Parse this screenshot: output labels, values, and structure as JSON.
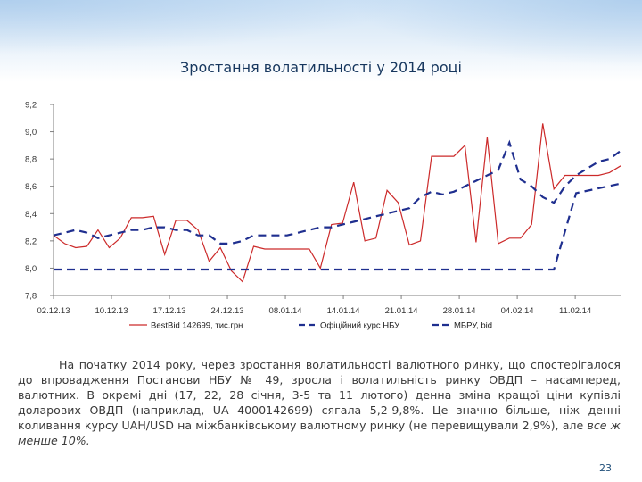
{
  "title": "Зростання волатильності у 2014 році",
  "caption": {
    "text": "На початку 2014 року, через зростання волатильності валютного ринку, що спостерігалося до впровадження Постанови НБУ № 49, зросла і волатильність ринку ОВДП – насамперед, валютних. В окремі дні (17, 22, 28 січня, 3-5 та 11 лютого) денна зміна кращої ціни купівлі доларових ОВДП (наприклад, UA 4000142699) сягала 5,2-9,8%. Це значно більше, ніж денні коливання курсу UAH/USD на міжбанківському валютному ринку (не перевищували 2,9%), але ",
    "emphasis": "все ж менше 10%."
  },
  "page_number": "23",
  "chart_data": {
    "type": "line",
    "title": "",
    "xlabel": "",
    "ylabel": "",
    "ylim": [
      7.8,
      9.2
    ],
    "y_ticks": [
      "7,8",
      "8,0",
      "8,2",
      "8,4",
      "8,6",
      "8,8",
      "9,0",
      "9,2"
    ],
    "x_ticks": [
      "02.12.13",
      "10.12.13",
      "17.12.13",
      "24.12.13",
      "08.01.14",
      "14.01.14",
      "21.01.14",
      "28.01.14",
      "04.02.14",
      "11.02.14"
    ],
    "x_range": [
      0,
      51
    ],
    "grid": false,
    "legend_position": "bottom",
    "series": [
      {
        "name": "BestBid 142699, тис.грн",
        "color": "#cc2a2a",
        "style": "solid",
        "x": [
          0,
          1,
          2,
          3,
          4,
          5,
          6,
          7,
          8,
          9,
          10,
          11,
          12,
          13,
          14,
          15,
          16,
          17,
          18,
          19,
          20,
          21,
          22,
          23,
          24,
          25,
          26,
          27,
          28,
          29,
          30,
          31,
          32,
          33,
          34,
          35,
          36,
          37,
          38,
          39,
          40,
          41,
          42,
          43,
          44,
          45,
          46,
          47,
          48,
          49,
          50,
          51
        ],
        "y": [
          8.24,
          8.18,
          8.15,
          8.16,
          8.28,
          8.15,
          8.22,
          8.37,
          8.37,
          8.38,
          8.1,
          8.35,
          8.35,
          8.28,
          8.05,
          8.15,
          7.98,
          7.9,
          8.16,
          8.14,
          8.14,
          8.14,
          8.14,
          8.14,
          8.0,
          8.32,
          8.33,
          8.63,
          8.2,
          8.22,
          8.57,
          8.48,
          8.17,
          8.2,
          8.82,
          8.82,
          8.82,
          8.9,
          8.19,
          8.96,
          8.18,
          8.22,
          8.22,
          8.32,
          9.06,
          8.58,
          8.68,
          8.68,
          8.68,
          8.68,
          8.7,
          8.75
        ]
      },
      {
        "name": "Офіційний курс НБУ",
        "color": "#1f2f8f",
        "style": "dash",
        "x": [
          0,
          45,
          47,
          51
        ],
        "y": [
          7.99,
          7.99,
          8.55,
          8.62
        ]
      },
      {
        "name": "МБРУ, bid",
        "color": "#1f2f8f",
        "style": "dash",
        "x": [
          0,
          1,
          2,
          3,
          4,
          5,
          6,
          7,
          8,
          9,
          10,
          11,
          12,
          13,
          14,
          15,
          16,
          17,
          18,
          19,
          20,
          21,
          22,
          23,
          24,
          25,
          26,
          27,
          28,
          29,
          30,
          31,
          32,
          33,
          34,
          35,
          36,
          37,
          38,
          39,
          40,
          41,
          42,
          43,
          44,
          45,
          46,
          47,
          48,
          49,
          50,
          51
        ],
        "y": [
          8.24,
          8.26,
          8.28,
          8.26,
          8.22,
          8.24,
          8.26,
          8.28,
          8.28,
          8.3,
          8.3,
          8.28,
          8.28,
          8.24,
          8.24,
          8.18,
          8.18,
          8.2,
          8.24,
          8.24,
          8.24,
          8.24,
          8.26,
          8.28,
          8.3,
          8.3,
          8.32,
          8.34,
          8.36,
          8.38,
          8.4,
          8.42,
          8.44,
          8.52,
          8.56,
          8.54,
          8.56,
          8.6,
          8.64,
          8.68,
          8.72,
          8.92,
          8.65,
          8.6,
          8.52,
          8.48,
          8.6,
          8.68,
          8.73,
          8.78,
          8.8,
          8.86
        ]
      }
    ]
  }
}
